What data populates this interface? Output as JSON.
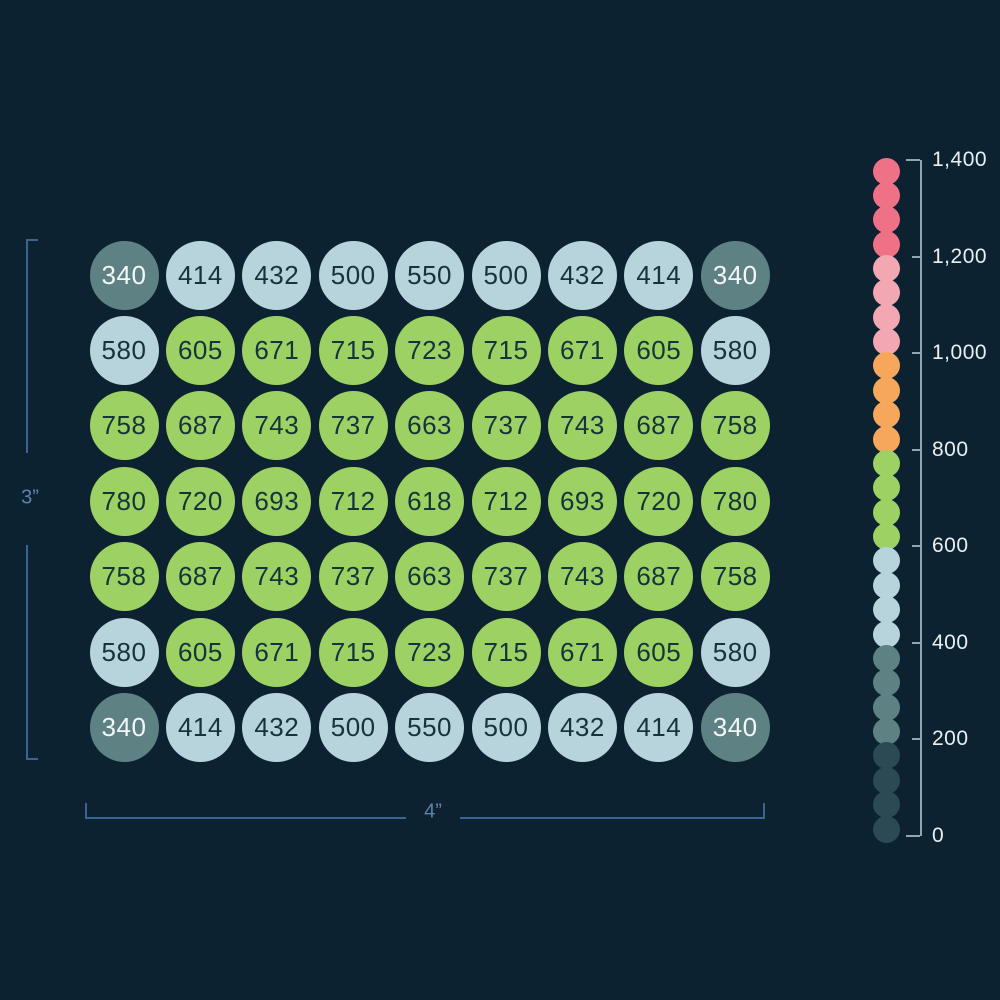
{
  "chart_data": {
    "type": "heatmap",
    "title": "",
    "rows": 7,
    "cols": 9,
    "grid_values": [
      [
        340,
        414,
        432,
        500,
        550,
        500,
        432,
        414,
        340
      ],
      [
        580,
        605,
        671,
        715,
        723,
        715,
        671,
        605,
        580
      ],
      [
        758,
        687,
        743,
        737,
        663,
        737,
        743,
        687,
        758
      ],
      [
        780,
        720,
        693,
        712,
        618,
        712,
        693,
        720,
        780
      ],
      [
        758,
        687,
        743,
        737,
        663,
        737,
        743,
        687,
        758
      ],
      [
        580,
        605,
        671,
        715,
        723,
        715,
        671,
        605,
        580
      ],
      [
        340,
        414,
        432,
        500,
        550,
        500,
        432,
        414,
        340
      ]
    ],
    "dimension_labels": {
      "height": "3”",
      "width": "4”"
    },
    "value_bands": [
      {
        "min": 0,
        "max": 200,
        "color": "#2b4a53",
        "text_color": "#f4f7f8"
      },
      {
        "min": 200,
        "max": 400,
        "color": "#5e8184",
        "text_color": "#f4f7f8"
      },
      {
        "min": 400,
        "max": 600,
        "color": "#b7d3db",
        "text_color": "#16323a"
      },
      {
        "min": 600,
        "max": 800,
        "color": "#9ed163",
        "text_color": "#16323a"
      },
      {
        "min": 800,
        "max": 1000,
        "color": "#f6a75c",
        "text_color": "#16323a"
      },
      {
        "min": 1000,
        "max": 1200,
        "color": "#f3a7b2",
        "text_color": "#16323a"
      },
      {
        "min": 1200,
        "max": 1400,
        "color": "#ef7186",
        "text_color": "#16323a"
      }
    ],
    "legend": {
      "min": 0,
      "max": 1400,
      "tick_labels": [
        "1,400",
        "1,200",
        "1,000",
        "800",
        "600",
        "400",
        "200",
        "0"
      ],
      "dots_per_band": 4,
      "band_colors_top_to_bottom": [
        "#ef7186",
        "#f3a7b2",
        "#f6a75c",
        "#9ed163",
        "#b7d3db",
        "#5e8184",
        "#2b4a53"
      ]
    },
    "colors": {
      "background": "#0d2230",
      "dimension_line": "#3d6390",
      "dimension_label": "#5c82ad",
      "axis_line": "#8fa5af",
      "axis_label": "#e9eff2"
    }
  }
}
